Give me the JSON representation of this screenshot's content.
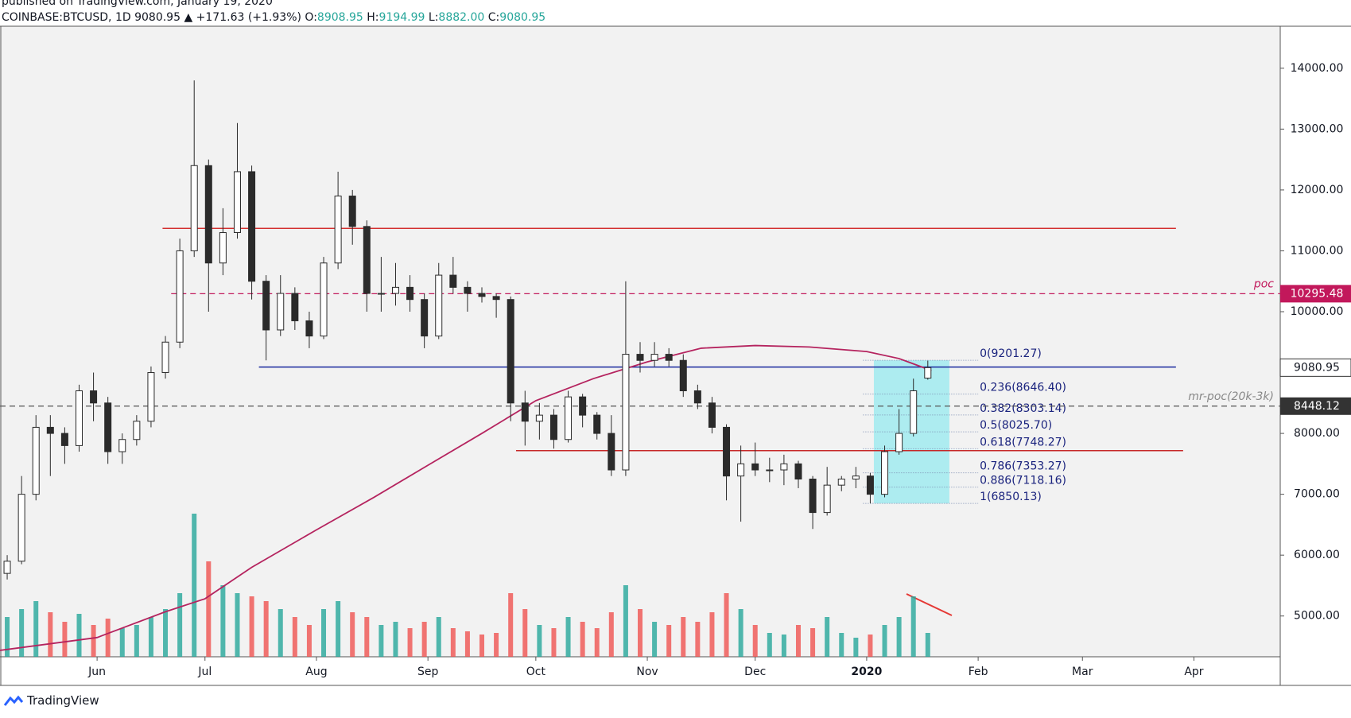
{
  "header": {
    "published": "published on TradingView.com, January 19, 2020",
    "symbol": "COINBASE:BTCUSD, 1D",
    "last": "9080.95",
    "change": "▲ +171.63 (+1.93%)",
    "o_label": "O:",
    "o": "8908.95",
    "h_label": "H:",
    "h": "9194.99",
    "l_label": "L:",
    "l": "8882.00",
    "c_label": "C:",
    "c": "9080.95"
  },
  "footer": {
    "brand": "TradingView"
  },
  "chart_data": {
    "type": "candlestick",
    "xlim": [
      0,
      356
    ],
    "ylim": [
      4330,
      14690
    ],
    "yticks": [
      {
        "value": 5000,
        "label": "5000.00"
      },
      {
        "value": 6000,
        "label": "6000.00"
      },
      {
        "value": 7000,
        "label": "7000.00"
      },
      {
        "value": 8000,
        "label": "8000.00"
      },
      {
        "value": 10000,
        "label": "10000.00"
      },
      {
        "value": 11000,
        "label": "11000.00"
      },
      {
        "value": 12000,
        "label": "12000.00"
      },
      {
        "value": 13000,
        "label": "13000.00"
      },
      {
        "value": 14000,
        "label": "14000.00"
      }
    ],
    "xticks": [
      {
        "value": 27,
        "label": "Jun"
      },
      {
        "value": 57,
        "label": "Jul"
      },
      {
        "value": 88,
        "label": "Aug"
      },
      {
        "value": 119,
        "label": "Sep"
      },
      {
        "value": 149,
        "label": "Oct"
      },
      {
        "value": 180,
        "label": "Nov"
      },
      {
        "value": 210,
        "label": "Dec"
      },
      {
        "value": 241,
        "label": "2020"
      },
      {
        "value": 272,
        "label": "Feb"
      },
      {
        "value": 301,
        "label": "Mar"
      },
      {
        "value": 332,
        "label": "Apr"
      }
    ],
    "up_color": "#ffffff",
    "down_color": "#2b2b2b",
    "wick_color": "#2b2b2b",
    "candles": {
      "x": [
        2,
        6,
        10,
        14,
        18,
        22,
        26,
        30,
        34,
        38,
        42,
        46,
        50,
        54,
        58,
        62,
        66,
        70,
        74,
        78,
        82,
        86,
        90,
        94,
        98,
        102,
        106,
        110,
        114,
        118,
        122,
        126,
        130,
        134,
        138,
        142,
        146,
        150,
        154,
        158,
        162,
        166,
        170,
        174,
        178,
        182,
        186,
        190,
        194,
        198,
        202,
        206,
        210,
        214,
        218,
        222,
        226,
        230,
        234,
        238,
        242,
        246,
        250,
        254,
        258
      ],
      "open": [
        5700,
        5900,
        7000,
        8100,
        8000,
        7800,
        8700,
        8500,
        7700,
        7900,
        8200,
        9000,
        9500,
        11000,
        12400,
        10800,
        11300,
        12300,
        10500,
        9700,
        10300,
        9850,
        9600,
        10800,
        11900,
        11400,
        10300,
        10300,
        10400,
        10200,
        9600,
        10600,
        10400,
        10300,
        10250,
        10200,
        8500,
        8200,
        8300,
        7900,
        8600,
        8300,
        8000,
        7400,
        9300,
        9200,
        9300,
        9200,
        8700,
        8500,
        8100,
        7300,
        7500,
        7400,
        7400,
        7500,
        7250,
        6700,
        7150,
        7250,
        7300,
        7000,
        7700,
        8000,
        8908.95
      ],
      "high": [
        6000,
        7300,
        8300,
        8300,
        8100,
        8800,
        9000,
        8600,
        8000,
        8300,
        9100,
        9600,
        11200,
        13800,
        12500,
        11700,
        13100,
        12400,
        10600,
        10600,
        10400,
        10000,
        10900,
        12300,
        12000,
        11500,
        10900,
        10800,
        10600,
        10300,
        10800,
        10900,
        10500,
        10400,
        10300,
        10250,
        8700,
        8500,
        8400,
        8700,
        8650,
        8350,
        8300,
        10500,
        9500,
        9500,
        9400,
        9300,
        8800,
        8600,
        8150,
        7800,
        7850,
        7600,
        7650,
        7550,
        7300,
        7450,
        7300,
        7450,
        7350,
        7800,
        8400,
        8900,
        9194.99
      ],
      "low": [
        5600,
        5850,
        6900,
        7300,
        7500,
        7700,
        8200,
        7500,
        7500,
        7800,
        8100,
        8900,
        9400,
        10900,
        10000,
        10600,
        11200,
        10200,
        9200,
        9600,
        9700,
        9400,
        9550,
        10700,
        11100,
        10000,
        10000,
        10100,
        10000,
        9400,
        9550,
        10300,
        10000,
        10150,
        9900,
        8200,
        7800,
        7900,
        7750,
        7850,
        8100,
        7900,
        7300,
        7300,
        9000,
        9100,
        9100,
        8600,
        8400,
        8000,
        6900,
        6550,
        7300,
        7200,
        7150,
        7100,
        6430,
        6650,
        7050,
        7100,
        6850,
        6950,
        7650,
        7950,
        8882
      ],
      "close": [
        5900,
        7000,
        8100,
        8000,
        7800,
        8700,
        8500,
        7700,
        7900,
        8200,
        9000,
        9500,
        11000,
        12400,
        10800,
        11300,
        12300,
        10500,
        9700,
        10300,
        9850,
        9600,
        10800,
        11900,
        11400,
        10300,
        10300,
        10400,
        10200,
        9600,
        10600,
        10400,
        10300,
        10250,
        10200,
        8500,
        8200,
        8300,
        7900,
        8600,
        8300,
        8000,
        7400,
        9300,
        9200,
        9300,
        9200,
        8700,
        8500,
        8100,
        7300,
        7500,
        7400,
        7400,
        7500,
        7250,
        6700,
        7150,
        7250,
        7300,
        7000,
        7700,
        8000,
        8700,
        9080.95
      ]
    },
    "volume": {
      "vlim": [
        0,
        100
      ],
      "up_color": "#26a69a",
      "down_color": "#ef5350",
      "values": [
        25,
        30,
        35,
        28,
        22,
        27,
        20,
        24,
        18,
        20,
        25,
        30,
        40,
        90,
        60,
        45,
        40,
        38,
        35,
        30,
        25,
        20,
        30,
        35,
        28,
        25,
        20,
        22,
        18,
        22,
        25,
        18,
        16,
        14,
        15,
        40,
        30,
        20,
        18,
        25,
        22,
        18,
        28,
        45,
        30,
        22,
        20,
        25,
        22,
        28,
        40,
        30,
        20,
        15,
        14,
        20,
        18,
        25,
        15,
        12,
        14,
        20,
        25,
        38,
        15
      ]
    },
    "ma": {
      "color": "#b5245f",
      "x": [
        0,
        27,
        46,
        57,
        70,
        88,
        104,
        119,
        134,
        149,
        165,
        180,
        195,
        210,
        225,
        241,
        250,
        259
      ],
      "values": [
        4435,
        4646,
        5070,
        5283,
        5800,
        6415,
        6950,
        7477,
        8000,
        8538,
        8900,
        9175,
        9400,
        9444,
        9420,
        9345,
        9230,
        9033
      ]
    },
    "lines": [
      {
        "value": 11368,
        "x": [
          45.2,
          327
        ],
        "color": "#d32f2f"
      },
      {
        "value": 9090,
        "x": [
          72,
          327
        ],
        "color": "#1a2a9e"
      },
      {
        "value": 7717,
        "x": [
          143.5,
          329
        ],
        "color": "#c62828"
      }
    ],
    "poc": {
      "name": "poc",
      "value": 10295.48,
      "label": "10295.48",
      "x_start": 47.6,
      "color": "#c2185b"
    },
    "mr_poc": {
      "name": "mr-poc(20k-3k)",
      "value": 8448.12,
      "label": "8448.12",
      "color": "#555555"
    },
    "last_price": {
      "value": 9080.95,
      "label": "9080.95"
    },
    "fib": {
      "box_x": [
        243,
        264
      ],
      "line_x": [
        240,
        272
      ],
      "fill": "#7fe7ef",
      "text_color": "#1a237e",
      "levels": [
        {
          "value": 9201.27,
          "label": "0(9201.27)"
        },
        {
          "value": 8646.4,
          "label": "0.236(8646.40)"
        },
        {
          "value": 8303.14,
          "label": "0.382(8303.14)"
        },
        {
          "value": 8025.7,
          "label": "0.5(8025.70)"
        },
        {
          "value": 7748.27,
          "label": "0.618(7748.27)"
        },
        {
          "value": 7353.27,
          "label": "0.786(7353.27)"
        },
        {
          "value": 7118.16,
          "label": "0.886(7118.16)"
        },
        {
          "value": 6850.13,
          "label": "1(6850.13)"
        }
      ]
    }
  }
}
